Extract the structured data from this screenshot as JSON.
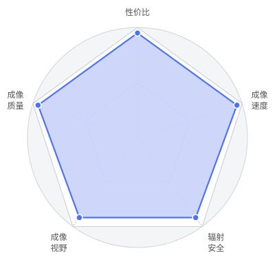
{
  "chart_data": {
    "type": "radar",
    "title": "",
    "indicators": [
      {
        "name": "性价比",
        "max": 100
      },
      {
        "name": "成像速度",
        "max": 100
      },
      {
        "name": "辐射安全",
        "max": 100
      },
      {
        "name": "成像视野",
        "max": 100
      },
      {
        "name": "成像质量",
        "max": 100
      }
    ],
    "series": [
      {
        "values": [
          95,
          95,
          90,
          90,
          95
        ]
      }
    ],
    "ring_count": 2,
    "colors": {
      "series_line": "#4f73ef",
      "series_fill": "#c9d3fa",
      "point_fill": "#4f73ef",
      "point_stroke": "#ffffff",
      "grid_outer": "#d4d4d4",
      "grid_inner": "#c6cbd6",
      "spoke": "#a9a9b9",
      "outer_band": "#f4f5f7",
      "label": "#555555"
    }
  }
}
